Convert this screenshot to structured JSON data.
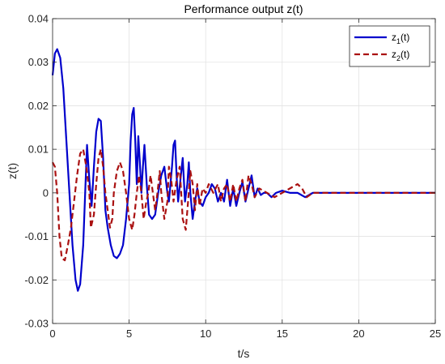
{
  "chart_data": {
    "type": "line",
    "title": "Performance output z(t)",
    "xlabel": "t/s",
    "ylabel": "z(t)",
    "xlim": [
      0,
      25
    ],
    "ylim": [
      -0.03,
      0.04
    ],
    "x_ticks": [
      0,
      5,
      10,
      15,
      20,
      25
    ],
    "y_ticks": [
      -0.03,
      -0.02,
      -0.01,
      0,
      0.01,
      0.02,
      0.03,
      0.04
    ],
    "x_tick_labels": [
      "0",
      "5",
      "10",
      "15",
      "20",
      "25"
    ],
    "y_tick_labels": [
      "-0.03",
      "-0.02",
      "-0.01",
      "0",
      "0.01",
      "0.02",
      "0.03",
      "0.04"
    ],
    "grid": true,
    "legend_position": "top-right",
    "series": [
      {
        "name": "z",
        "name_sub": "1",
        "name_suffix": "(t)",
        "color": "#0000cc",
        "style": "solid",
        "points": [
          [
            0.0,
            0.027
          ],
          [
            0.15,
            0.032
          ],
          [
            0.3,
            0.033
          ],
          [
            0.5,
            0.031
          ],
          [
            0.7,
            0.024
          ],
          [
            0.9,
            0.012
          ],
          [
            1.1,
            0.0
          ],
          [
            1.3,
            -0.012
          ],
          [
            1.5,
            -0.02
          ],
          [
            1.65,
            -0.0225
          ],
          [
            1.8,
            -0.021
          ],
          [
            2.0,
            -0.012
          ],
          [
            2.15,
            0.002
          ],
          [
            2.25,
            0.011
          ],
          [
            2.4,
            0.003
          ],
          [
            2.55,
            -0.003
          ],
          [
            2.7,
            0.006
          ],
          [
            2.85,
            0.014
          ],
          [
            3.0,
            0.017
          ],
          [
            3.15,
            0.0165
          ],
          [
            3.3,
            0.008
          ],
          [
            3.45,
            -0.004
          ],
          [
            3.6,
            -0.008
          ],
          [
            3.8,
            -0.012
          ],
          [
            4.0,
            -0.0145
          ],
          [
            4.2,
            -0.015
          ],
          [
            4.4,
            -0.014
          ],
          [
            4.6,
            -0.012
          ],
          [
            4.8,
            -0.006
          ],
          [
            5.0,
            0.002
          ],
          [
            5.1,
            0.012
          ],
          [
            5.2,
            0.018
          ],
          [
            5.3,
            0.0195
          ],
          [
            5.4,
            0.012
          ],
          [
            5.5,
            0.002
          ],
          [
            5.6,
            0.013
          ],
          [
            5.7,
            0.007
          ],
          [
            5.8,
            0.0
          ],
          [
            5.9,
            0.006
          ],
          [
            6.0,
            0.011
          ],
          [
            6.15,
            0.002
          ],
          [
            6.3,
            -0.005
          ],
          [
            6.5,
            -0.006
          ],
          [
            6.7,
            -0.005
          ],
          [
            6.9,
            0.0
          ],
          [
            7.1,
            0.004
          ],
          [
            7.3,
            0.006
          ],
          [
            7.5,
            0.0
          ],
          [
            7.6,
            -0.002
          ],
          [
            7.8,
            0.006
          ],
          [
            7.9,
            0.011
          ],
          [
            8.0,
            0.012
          ],
          [
            8.1,
            0.004
          ],
          [
            8.2,
            -0.002
          ],
          [
            8.35,
            0.003
          ],
          [
            8.5,
            0.008
          ],
          [
            8.65,
            -0.002
          ],
          [
            8.8,
            0.002
          ],
          [
            8.9,
            0.007
          ],
          [
            9.0,
            0.0
          ],
          [
            9.15,
            -0.006
          ],
          [
            9.3,
            -0.002
          ],
          [
            9.45,
            0.001
          ],
          [
            9.6,
            -0.002
          ],
          [
            9.8,
            -0.003
          ],
          [
            10.0,
            -0.001
          ],
          [
            10.2,
            0.0
          ],
          [
            10.4,
            0.002
          ],
          [
            10.6,
            0.001
          ],
          [
            10.8,
            -0.002
          ],
          [
            11.0,
            0.0
          ],
          [
            11.2,
            -0.002
          ],
          [
            11.4,
            0.003
          ],
          [
            11.6,
            -0.003
          ],
          [
            11.8,
            0.001
          ],
          [
            12.0,
            -0.003
          ],
          [
            12.2,
            0.0
          ],
          [
            12.4,
            0.0025
          ],
          [
            12.6,
            -0.002
          ],
          [
            12.8,
            0.001
          ],
          [
            13.0,
            0.004
          ],
          [
            13.2,
            -0.001
          ],
          [
            13.4,
            0.001
          ],
          [
            13.6,
            -0.0005
          ],
          [
            13.8,
            0.0
          ],
          [
            14.0,
            0.0
          ],
          [
            14.3,
            -0.001
          ],
          [
            14.6,
            0.0
          ],
          [
            15.0,
            0.0005
          ],
          [
            15.5,
            0.0
          ],
          [
            16.0,
            0.0
          ],
          [
            16.5,
            -0.001
          ],
          [
            17.0,
            0.0
          ],
          [
            18.0,
            0.0
          ],
          [
            19.0,
            0.0
          ],
          [
            20.0,
            0.0
          ],
          [
            21.0,
            0.0
          ],
          [
            22.0,
            0.0
          ],
          [
            23.0,
            0.0
          ],
          [
            24.0,
            0.0
          ],
          [
            25.0,
            0.0
          ]
        ]
      },
      {
        "name": "z",
        "name_sub": "2",
        "name_suffix": "(t)",
        "color": "#aa1111",
        "style": "dashed",
        "points": [
          [
            0.0,
            0.007
          ],
          [
            0.15,
            0.006
          ],
          [
            0.3,
            0.0
          ],
          [
            0.45,
            -0.01
          ],
          [
            0.6,
            -0.015
          ],
          [
            0.8,
            -0.0155
          ],
          [
            1.0,
            -0.012
          ],
          [
            1.2,
            -0.008
          ],
          [
            1.4,
            -0.002
          ],
          [
            1.6,
            0.004
          ],
          [
            1.8,
            0.009
          ],
          [
            2.0,
            0.01
          ],
          [
            2.2,
            0.006
          ],
          [
            2.4,
            0.0
          ],
          [
            2.5,
            -0.008
          ],
          [
            2.7,
            -0.005
          ],
          [
            2.85,
            0.002
          ],
          [
            3.0,
            0.008
          ],
          [
            3.15,
            0.01
          ],
          [
            3.3,
            0.006
          ],
          [
            3.45,
            0.0
          ],
          [
            3.6,
            -0.004
          ],
          [
            3.75,
            -0.008
          ],
          [
            3.9,
            -0.006
          ],
          [
            4.0,
            0.0
          ],
          [
            4.2,
            0.005
          ],
          [
            4.4,
            0.007
          ],
          [
            4.6,
            0.005
          ],
          [
            4.8,
            0.0
          ],
          [
            5.0,
            -0.006
          ],
          [
            5.2,
            -0.0085
          ],
          [
            5.35,
            -0.005
          ],
          [
            5.5,
            0.0
          ],
          [
            5.65,
            0.004
          ],
          [
            5.8,
            0.0
          ],
          [
            5.95,
            -0.006
          ],
          [
            6.1,
            -0.0025
          ],
          [
            6.25,
            0.0
          ],
          [
            6.4,
            0.004
          ],
          [
            6.55,
            0.0
          ],
          [
            6.7,
            -0.004
          ],
          [
            6.85,
            0.0
          ],
          [
            7.0,
            0.005
          ],
          [
            7.1,
            0.0
          ],
          [
            7.3,
            -0.006
          ],
          [
            7.5,
            -0.002
          ],
          [
            7.6,
            0.006
          ],
          [
            7.75,
            0.003
          ],
          [
            7.9,
            -0.002
          ],
          [
            8.1,
            0.003
          ],
          [
            8.3,
            0.006
          ],
          [
            8.5,
            -0.006
          ],
          [
            8.7,
            -0.0085
          ],
          [
            8.85,
            -0.002
          ],
          [
            9.0,
            0.005
          ],
          [
            9.15,
            0.002
          ],
          [
            9.3,
            -0.004
          ],
          [
            9.45,
            0.002
          ],
          [
            9.6,
            -0.003
          ],
          [
            9.8,
            0.001
          ],
          [
            10.0,
            0.0
          ],
          [
            10.2,
            0.002
          ],
          [
            10.5,
            0.0
          ],
          [
            10.8,
            0.002
          ],
          [
            11.0,
            -0.002
          ],
          [
            11.2,
            0.001
          ],
          [
            11.4,
            0.002
          ],
          [
            11.6,
            -0.002
          ],
          [
            11.8,
            0.002
          ],
          [
            12.0,
            -0.002
          ],
          [
            12.2,
            0.001
          ],
          [
            12.4,
            0.003
          ],
          [
            12.6,
            -0.002
          ],
          [
            12.8,
            0.004
          ],
          [
            13.0,
            0.002
          ],
          [
            13.2,
            -0.001
          ],
          [
            13.5,
            0.001
          ],
          [
            14.0,
            0.0
          ],
          [
            14.5,
            -0.001
          ],
          [
            15.0,
            0.0
          ],
          [
            15.5,
            0.001
          ],
          [
            16.0,
            0.002
          ],
          [
            16.3,
            0.001
          ],
          [
            16.6,
            -0.001
          ],
          [
            17.0,
            0.0
          ],
          [
            18.0,
            0.0
          ],
          [
            19.0,
            0.0
          ],
          [
            20.0,
            0.0
          ],
          [
            21.0,
            0.0
          ],
          [
            22.0,
            0.0
          ],
          [
            23.0,
            0.0
          ],
          [
            24.0,
            0.0
          ],
          [
            25.0,
            0.0
          ]
        ]
      }
    ]
  }
}
